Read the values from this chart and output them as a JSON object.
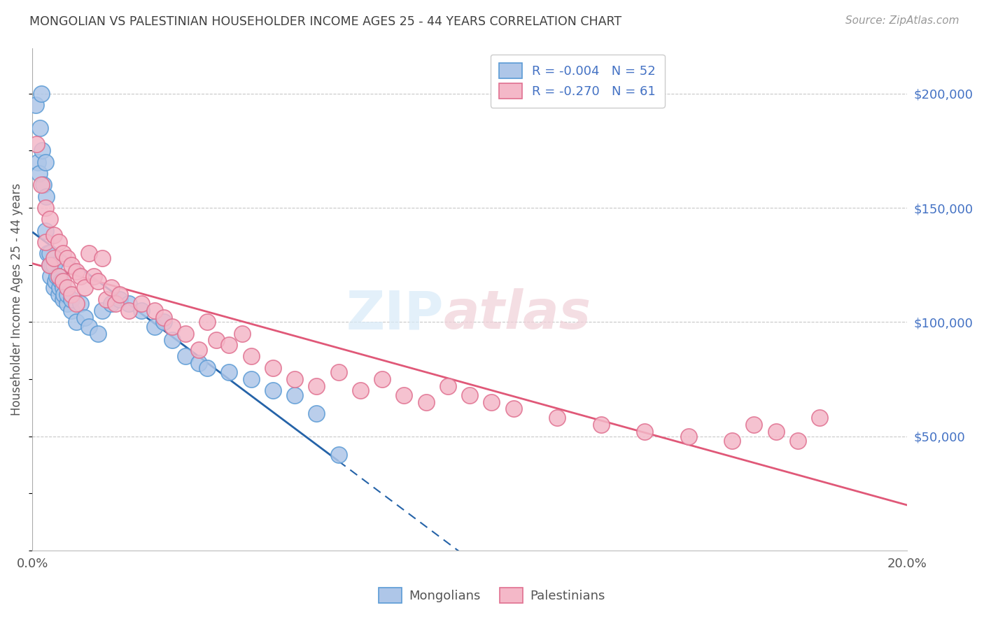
{
  "title": "MONGOLIAN VS PALESTINIAN HOUSEHOLDER INCOME AGES 25 - 44 YEARS CORRELATION CHART",
  "source": "Source: ZipAtlas.com",
  "ylabel": "Householder Income Ages 25 - 44 years",
  "xlim": [
    0.0,
    0.2
  ],
  "ylim": [
    0,
    220000
  ],
  "yticks": [
    50000,
    100000,
    150000,
    200000
  ],
  "ytick_labels": [
    "$50,000",
    "$100,000",
    "$150,000",
    "$200,000"
  ],
  "mongolian_R": "-0.004",
  "mongolian_N": "52",
  "palestinian_R": "-0.270",
  "palestinian_N": "61",
  "mongolian_color": "#aec6e8",
  "mongolian_edge": "#5b9bd5",
  "mongolian_line_color": "#2563a8",
  "palestinian_color": "#f4b8c8",
  "palestinian_edge": "#e07090",
  "palestinian_line_color": "#e05878",
  "background_color": "#ffffff",
  "grid_color": "#c8c8c8",
  "title_color": "#404040",
  "source_color": "#999999",
  "accent_color": "#4472c4",
  "mongolians_x": [
    0.0008,
    0.0012,
    0.0015,
    0.0018,
    0.002,
    0.0022,
    0.0025,
    0.003,
    0.003,
    0.0032,
    0.0035,
    0.004,
    0.004,
    0.0042,
    0.0045,
    0.005,
    0.005,
    0.0052,
    0.0055,
    0.006,
    0.006,
    0.0062,
    0.0065,
    0.007,
    0.007,
    0.0072,
    0.008,
    0.008,
    0.009,
    0.009,
    0.01,
    0.011,
    0.012,
    0.013,
    0.015,
    0.016,
    0.018,
    0.02,
    0.022,
    0.025,
    0.028,
    0.03,
    0.032,
    0.035,
    0.038,
    0.04,
    0.045,
    0.05,
    0.055,
    0.06,
    0.065,
    0.07
  ],
  "mongolians_y": [
    195000,
    170000,
    165000,
    185000,
    200000,
    175000,
    160000,
    170000,
    140000,
    155000,
    130000,
    125000,
    130000,
    120000,
    125000,
    115000,
    125000,
    118000,
    120000,
    112000,
    120000,
    115000,
    118000,
    110000,
    115000,
    112000,
    108000,
    112000,
    105000,
    110000,
    100000,
    108000,
    102000,
    98000,
    95000,
    105000,
    108000,
    110000,
    108000,
    105000,
    98000,
    100000,
    92000,
    85000,
    82000,
    80000,
    78000,
    75000,
    70000,
    68000,
    60000,
    42000
  ],
  "palestinians_x": [
    0.001,
    0.002,
    0.003,
    0.003,
    0.004,
    0.004,
    0.005,
    0.005,
    0.006,
    0.006,
    0.007,
    0.007,
    0.008,
    0.008,
    0.009,
    0.009,
    0.01,
    0.01,
    0.011,
    0.012,
    0.013,
    0.014,
    0.015,
    0.016,
    0.017,
    0.018,
    0.019,
    0.02,
    0.022,
    0.025,
    0.028,
    0.03,
    0.032,
    0.035,
    0.038,
    0.04,
    0.042,
    0.045,
    0.048,
    0.05,
    0.055,
    0.06,
    0.065,
    0.07,
    0.075,
    0.08,
    0.085,
    0.09,
    0.095,
    0.1,
    0.105,
    0.11,
    0.12,
    0.13,
    0.14,
    0.15,
    0.16,
    0.165,
    0.17,
    0.175,
    0.18
  ],
  "palestinians_y": [
    178000,
    160000,
    150000,
    135000,
    145000,
    125000,
    138000,
    128000,
    135000,
    120000,
    130000,
    118000,
    128000,
    115000,
    125000,
    112000,
    122000,
    108000,
    120000,
    115000,
    130000,
    120000,
    118000,
    128000,
    110000,
    115000,
    108000,
    112000,
    105000,
    108000,
    105000,
    102000,
    98000,
    95000,
    88000,
    100000,
    92000,
    90000,
    95000,
    85000,
    80000,
    75000,
    72000,
    78000,
    70000,
    75000,
    68000,
    65000,
    72000,
    68000,
    65000,
    62000,
    58000,
    55000,
    52000,
    50000,
    48000,
    55000,
    52000,
    48000,
    58000
  ]
}
